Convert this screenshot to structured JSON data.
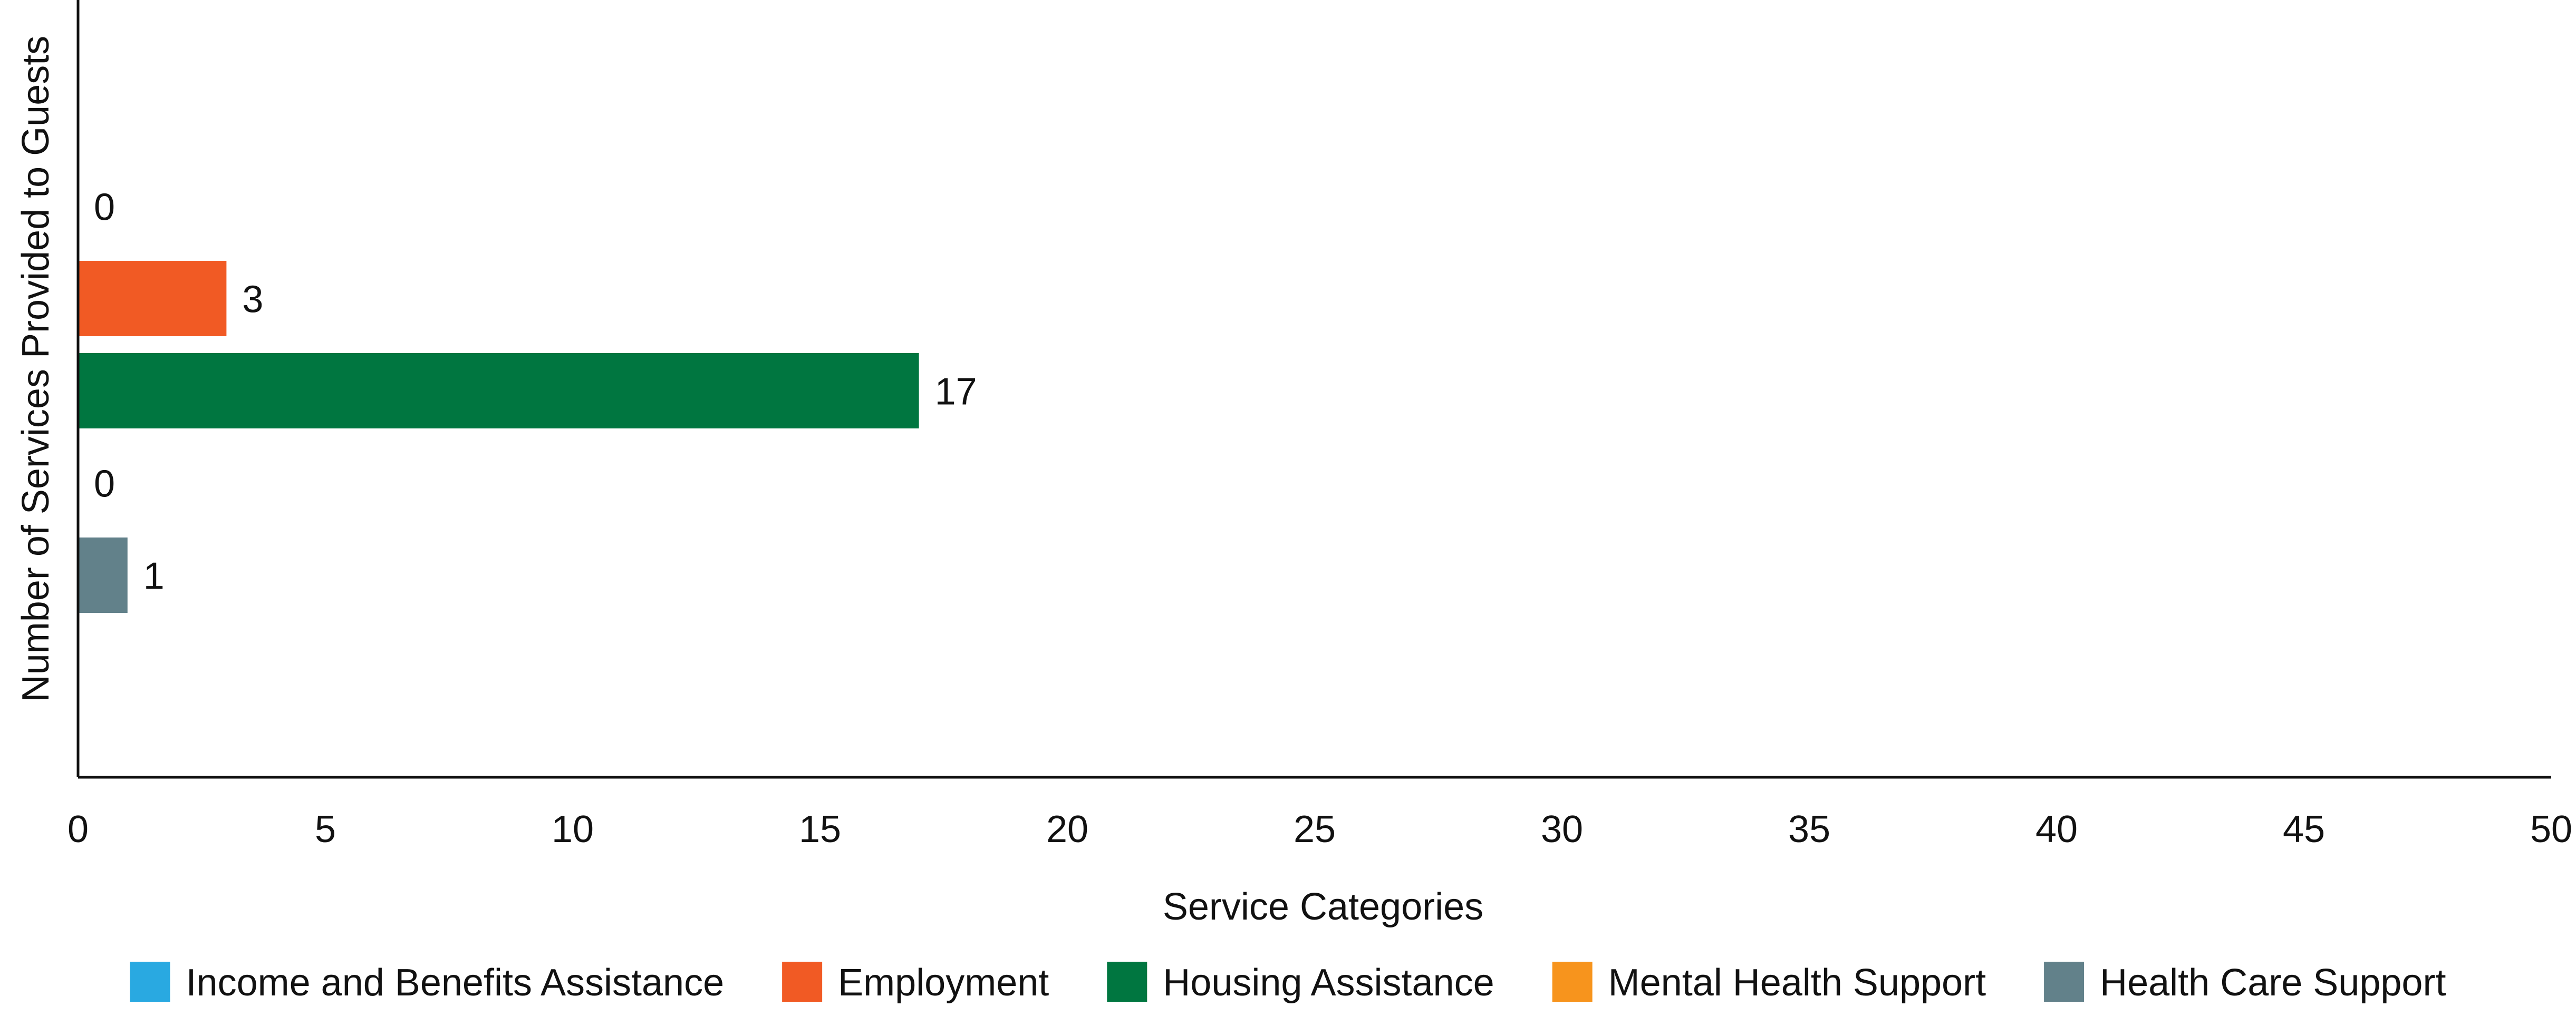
{
  "chart_data": {
    "type": "bar",
    "orientation": "horizontal",
    "xlabel": "Service Categories",
    "ylabel": "Number of Services Provided to Guests",
    "xlim": [
      0,
      50
    ],
    "x_ticks": [
      "0",
      "5",
      "10",
      "15",
      "20",
      "25",
      "30",
      "35",
      "40",
      "45",
      "50"
    ],
    "grid": false,
    "legend_position": "bottom",
    "series": [
      {
        "name": "Income and Benefits Assistance",
        "value": 0,
        "label": "0",
        "color": "#29A9E1"
      },
      {
        "name": "Employment",
        "value": 3,
        "label": "3",
        "color": "#F15A24"
      },
      {
        "name": "Housing Assistance",
        "value": 17,
        "label": "17",
        "color": "#007640"
      },
      {
        "name": "Mental Health Support",
        "value": 0,
        "label": "0",
        "color": "#F7941D"
      },
      {
        "name": "Health Care Support",
        "value": 1,
        "label": "1",
        "color": "#62818A"
      }
    ]
  }
}
